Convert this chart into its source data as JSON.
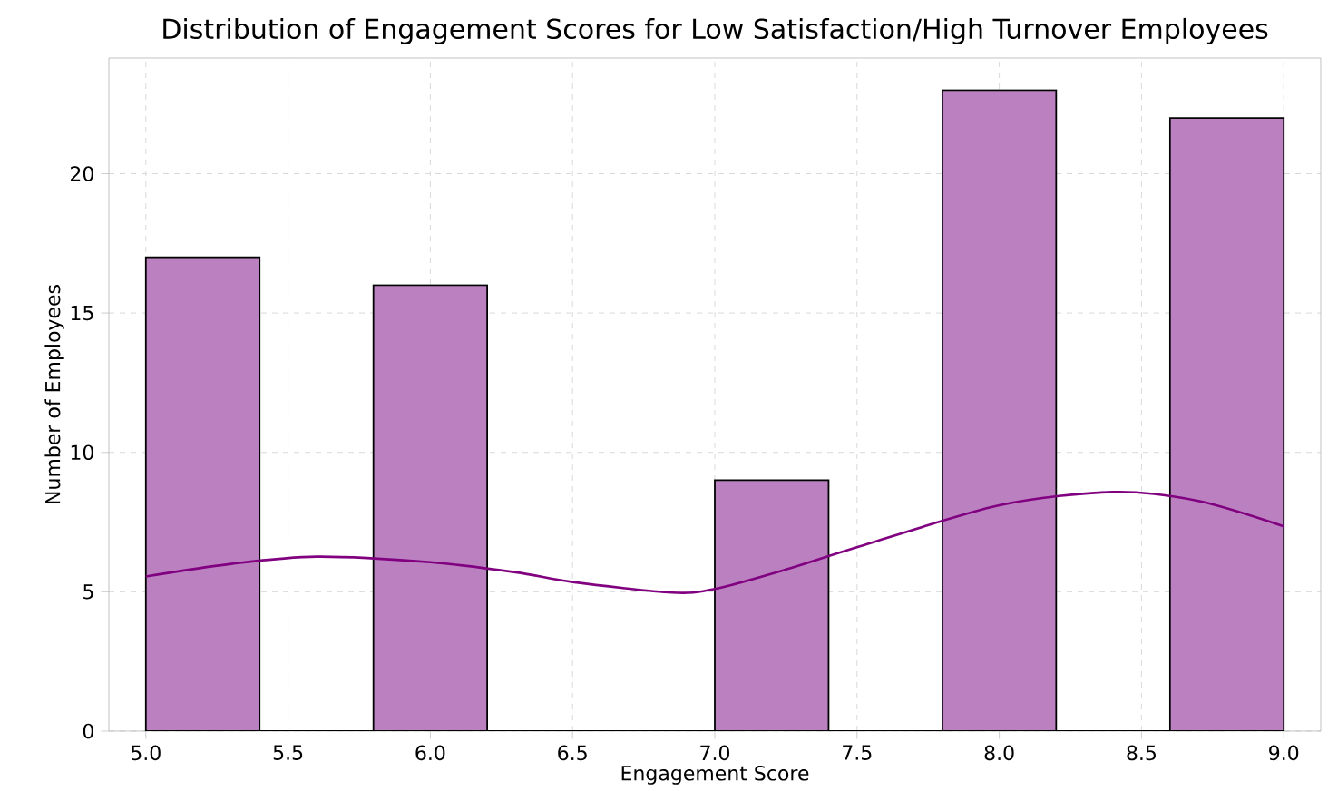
{
  "chart_data": {
    "type": "histogram",
    "title": "Distribution of Engagement Scores for Low Satisfaction/High Turnover Employees",
    "xlabel": "Engagement Score",
    "ylabel": "Number of Employees",
    "series": [
      {
        "bins": [
          5.0,
          5.4,
          5.8,
          6.2,
          6.6,
          7.0,
          7.4,
          7.8,
          8.2,
          8.6,
          9.0
        ],
        "values": [
          17,
          0,
          16,
          0,
          0,
          9,
          0,
          23,
          0,
          22
        ],
        "color": "#bb80c0"
      },
      {
        "type": "line",
        "x": [
          5.0,
          5.3,
          5.6,
          6.0,
          6.3,
          6.5,
          6.85,
          7.0,
          7.25,
          7.5,
          8.0,
          8.4,
          8.7,
          9.0
        ],
        "values": [
          5.55,
          6.0,
          6.26,
          6.06,
          5.7,
          5.35,
          4.97,
          5.1,
          5.8,
          6.6,
          8.1,
          8.58,
          8.26,
          7.35
        ],
        "color": "#800080"
      }
    ],
    "xlim": [
      4.87,
      9.13
    ],
    "ylim": [
      0,
      24.15
    ],
    "xticks": [
      {
        "value": 5.0,
        "label": "5.0"
      },
      {
        "value": 5.5,
        "label": "5.5"
      },
      {
        "value": 6.0,
        "label": "6.0"
      },
      {
        "value": 6.5,
        "label": "6.5"
      },
      {
        "value": 7.0,
        "label": "7.0"
      },
      {
        "value": 7.5,
        "label": "7.5"
      },
      {
        "value": 8.0,
        "label": "8.0"
      },
      {
        "value": 8.5,
        "label": "8.5"
      },
      {
        "value": 9.0,
        "label": "9.0"
      }
    ],
    "yticks": [
      0,
      5,
      10,
      15,
      20
    ],
    "grid": true
  }
}
